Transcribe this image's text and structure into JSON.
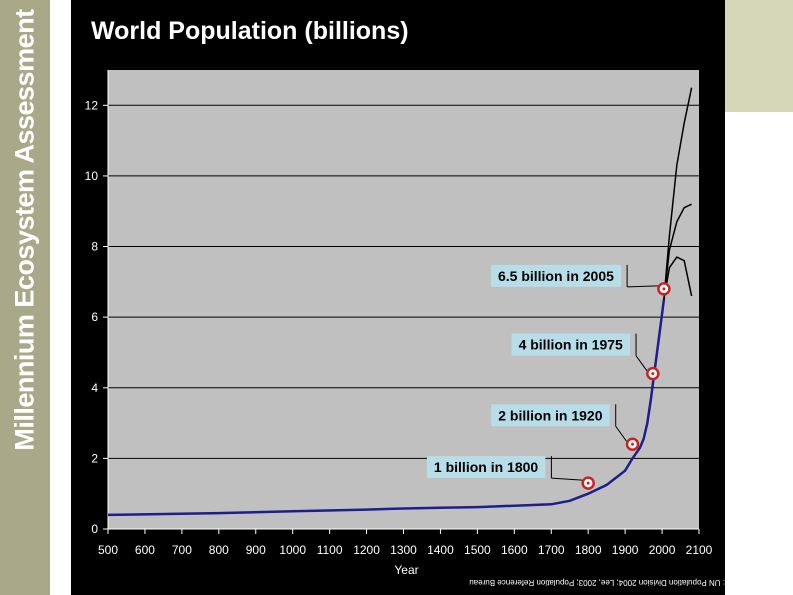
{
  "sidebar": {
    "text": "Millennium Ecosystem Assessment"
  },
  "source": ": UN Population Division 2004; Lee, 2003; Population Reference Bureau",
  "colors": {
    "plot_bg": "#c0c0c0",
    "main_line": "#1e1e8c",
    "marker": "#cc2222",
    "label_bg": "#b7dde8",
    "panel_bg": "#000000",
    "sidebar": "#a9a98a"
  },
  "chart_data": {
    "type": "line",
    "title": "World Population (billions)",
    "xlabel": "Year",
    "ylabel": "",
    "xlim": [
      500,
      2100
    ],
    "ylim": [
      0,
      13
    ],
    "xticks": [
      500,
      600,
      700,
      800,
      900,
      1000,
      1100,
      1200,
      1300,
      1400,
      1500,
      1600,
      1700,
      1800,
      1900,
      2000,
      2100
    ],
    "yticks": [
      0,
      2,
      4,
      6,
      8,
      10,
      12
    ],
    "grid": true,
    "series": [
      {
        "x": [
          500,
          800,
          1000,
          1200,
          1300,
          1400,
          1500,
          1600,
          1700,
          1750,
          1800,
          1850,
          1900,
          1920,
          1940,
          1950,
          1960,
          1970,
          1975,
          1980,
          1990,
          2000,
          2005
        ],
        "y": [
          0.4,
          0.45,
          0.5,
          0.55,
          0.58,
          0.6,
          0.62,
          0.66,
          0.7,
          0.8,
          1.0,
          1.25,
          1.65,
          2.0,
          2.3,
          2.55,
          3.0,
          3.7,
          4.1,
          4.5,
          5.3,
          6.1,
          6.5
        ]
      },
      {
        "x": [
          2005,
          2020,
          2040,
          2060,
          2080
        ],
        "y": [
          6.5,
          8.3,
          10.3,
          11.5,
          12.5
        ]
      },
      {
        "x": [
          2005,
          2020,
          2040,
          2060,
          2080
        ],
        "y": [
          6.5,
          7.9,
          8.7,
          9.1,
          9.2
        ]
      },
      {
        "x": [
          2005,
          2020,
          2040,
          2060,
          2080
        ],
        "y": [
          6.5,
          7.4,
          7.7,
          7.6,
          6.6
        ]
      }
    ],
    "milestones": [
      {
        "x": 1800,
        "y": 1.3,
        "label": "1 billion in 1800"
      },
      {
        "x": 1920,
        "y": 2.4,
        "label": "2 billion in 1920"
      },
      {
        "x": 1975,
        "y": 4.4,
        "label": "4 billion in 1975"
      },
      {
        "x": 2005,
        "y": 6.8,
        "label": "6.5 billion in 2005"
      }
    ]
  }
}
